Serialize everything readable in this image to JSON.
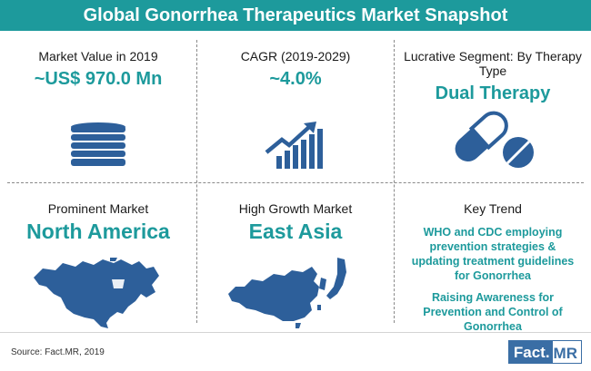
{
  "title": "Global Gonorrhea Therapeutics Market Snapshot",
  "colors": {
    "accent": "#1d9a9c",
    "icon": "#2d5f9a",
    "brand": "#3a6ea5"
  },
  "tiles": {
    "market_value": {
      "label": "Market Value in 2019",
      "value": "~US$ 970.0 Mn",
      "icon": "coin-stack-icon"
    },
    "cagr": {
      "label": "CAGR (2019-2029)",
      "value": "~4.0%",
      "icon": "growth-chart-icon"
    },
    "segment": {
      "label": "Lucrative Segment: By Therapy Type",
      "value": "Dual Therapy",
      "icon": "pills-icon"
    },
    "prominent": {
      "label": "Prominent Market",
      "value": "North America",
      "icon": "north-america-map-icon"
    },
    "growth": {
      "label": "High Growth Market",
      "value": "East Asia",
      "icon": "east-asia-map-icon"
    },
    "trend": {
      "label": "Key Trend",
      "items": [
        "WHO and CDC employing prevention strategies & updating treatment guidelines for Gonorrhea",
        "Raising Awareness for Prevention and Control of Gonorrhea"
      ]
    }
  },
  "footer": {
    "source": "Source: Fact.MR, 2019",
    "logo_a": "Fact.",
    "logo_b": "MR"
  }
}
